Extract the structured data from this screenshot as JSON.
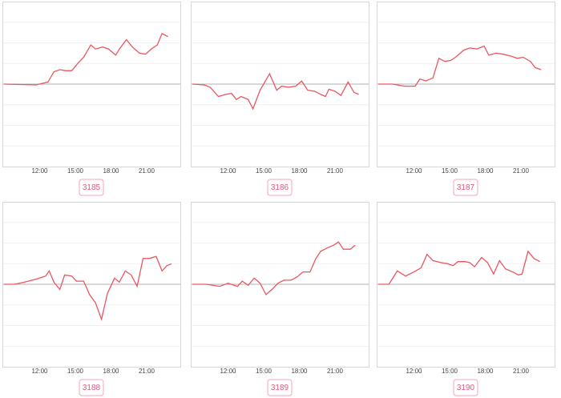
{
  "chart_data": [
    {
      "type": "line",
      "label": "3185",
      "color": "#ea5660",
      "x": [
        9.0,
        11.7,
        12.7,
        13.2,
        13.7,
        14.2,
        14.7,
        15.2,
        15.7,
        16.3,
        16.7,
        17.3,
        17.8,
        18.4,
        18.7,
        19.3,
        19.8,
        20.4,
        20.9,
        21.4,
        21.9,
        22.3,
        22.8
      ],
      "values": [
        0,
        -0.04,
        0.1,
        0.6,
        0.7,
        0.65,
        0.65,
        1.0,
        1.3,
        1.9,
        1.7,
        1.8,
        1.7,
        1.4,
        1.7,
        2.15,
        1.8,
        1.5,
        1.45,
        1.7,
        1.9,
        2.45,
        2.3
      ],
      "xlim": [
        9,
        23.7
      ],
      "ylim": [
        -4,
        4
      ],
      "yticks": [
        -3,
        -2,
        -1,
        0,
        1,
        2,
        3
      ],
      "xticks": [
        {
          "value": 12,
          "label": "12:00"
        },
        {
          "value": 15,
          "label": "15:00"
        },
        {
          "value": 18,
          "label": "18:00"
        },
        {
          "value": 21,
          "label": "21:00"
        }
      ],
      "grid": true
    },
    {
      "type": "line",
      "label": "3186",
      "color": "#ea5660",
      "x": [
        9.0,
        10.0,
        10.5,
        11.2,
        11.8,
        12.3,
        12.7,
        13.1,
        13.7,
        14.1,
        14.7,
        15.5,
        16.1,
        16.5,
        17.1,
        17.7,
        18.2,
        18.7,
        19.3,
        19.8,
        20.2,
        20.5,
        21.0,
        21.5,
        22.1,
        22.6,
        23.0
      ],
      "values": [
        0,
        -0.04,
        -0.15,
        -0.6,
        -0.5,
        -0.45,
        -0.75,
        -0.6,
        -0.75,
        -1.2,
        -0.3,
        0.5,
        -0.3,
        -0.1,
        -0.15,
        -0.1,
        0.15,
        -0.3,
        -0.35,
        -0.5,
        -0.6,
        -0.25,
        -0.35,
        -0.55,
        0.1,
        -0.4,
        -0.5
      ],
      "xlim": [
        9,
        23.7
      ],
      "ylim": [
        -4,
        4
      ],
      "yticks": [
        -3,
        -2,
        -1,
        0,
        1,
        2,
        3
      ],
      "xticks": [
        {
          "value": 12,
          "label": "12:00"
        },
        {
          "value": 15,
          "label": "15:00"
        },
        {
          "value": 18,
          "label": "18:00"
        },
        {
          "value": 21,
          "label": "21:00"
        }
      ],
      "grid": true
    },
    {
      "type": "line",
      "label": "3187",
      "color": "#ea5660",
      "x": [
        9.0,
        10.2,
        11.2,
        12.1,
        12.5,
        13.0,
        13.6,
        14.1,
        14.6,
        15.1,
        15.5,
        16.2,
        16.7,
        17.3,
        17.9,
        18.3,
        18.9,
        19.5,
        20.2,
        20.7,
        21.2,
        21.8,
        22.2,
        22.7
      ],
      "values": [
        0,
        0,
        -0.1,
        -0.1,
        0.25,
        0.15,
        0.3,
        1.25,
        1.1,
        1.15,
        1.3,
        1.65,
        1.75,
        1.7,
        1.85,
        1.4,
        1.5,
        1.45,
        1.35,
        1.25,
        1.3,
        1.1,
        0.8,
        0.7
      ],
      "xlim": [
        9,
        23.7
      ],
      "ylim": [
        -4,
        4
      ],
      "yticks": [
        -3,
        -2,
        -1,
        0,
        1,
        2,
        3
      ],
      "xticks": [
        {
          "value": 12,
          "label": "12:00"
        },
        {
          "value": 15,
          "label": "15:00"
        },
        {
          "value": 18,
          "label": "18:00"
        },
        {
          "value": 21,
          "label": "21:00"
        }
      ],
      "grid": true
    },
    {
      "type": "line",
      "label": "3188",
      "color": "#ea5660",
      "x": [
        9.0,
        9.9,
        10.7,
        11.7,
        12.5,
        12.8,
        13.2,
        13.7,
        14.1,
        14.7,
        15.1,
        15.7,
        16.2,
        16.7,
        17.2,
        17.7,
        18.3,
        18.7,
        19.2,
        19.7,
        20.2,
        20.7,
        21.2,
        21.8,
        22.3,
        22.7,
        23.1
      ],
      "values": [
        0,
        0,
        0.1,
        0.25,
        0.4,
        0.65,
        0.1,
        -0.25,
        0.45,
        0.4,
        0.15,
        0.15,
        -0.5,
        -0.9,
        -1.7,
        -0.45,
        0.3,
        0.1,
        0.65,
        0.45,
        -0.1,
        1.25,
        1.25,
        1.35,
        0.65,
        0.9,
        1.0
      ],
      "xlim": [
        9,
        23.7
      ],
      "ylim": [
        -4,
        4
      ],
      "yticks": [
        -3,
        -2,
        -1,
        0,
        1,
        2,
        3
      ],
      "xticks": [
        {
          "value": 12,
          "label": "12:00"
        },
        {
          "value": 15,
          "label": "15:00"
        },
        {
          "value": 18,
          "label": "18:00"
        },
        {
          "value": 21,
          "label": "21:00"
        }
      ],
      "grid": true
    },
    {
      "type": "line",
      "label": "3189",
      "color": "#ea5660",
      "x": [
        9.0,
        10.2,
        11.3,
        12.0,
        12.5,
        12.8,
        13.2,
        13.7,
        14.2,
        14.7,
        15.2,
        15.7,
        16.2,
        16.7,
        17.3,
        17.8,
        18.3,
        18.9,
        19.4,
        19.8,
        20.3,
        20.9,
        21.3,
        21.7,
        22.3,
        22.7
      ],
      "values": [
        0,
        0,
        -0.1,
        0.05,
        -0.05,
        -0.1,
        0.15,
        -0.05,
        0.3,
        0.05,
        -0.5,
        -0.25,
        0.05,
        0.2,
        0.2,
        0.35,
        0.6,
        0.6,
        1.25,
        1.6,
        1.75,
        1.9,
        2.05,
        1.7,
        1.7,
        1.9
      ],
      "xlim": [
        9,
        23.7
      ],
      "ylim": [
        -4,
        4
      ],
      "yticks": [
        -3,
        -2,
        -1,
        0,
        1,
        2,
        3
      ],
      "xticks": [
        {
          "value": 12,
          "label": "12:00"
        },
        {
          "value": 15,
          "label": "15:00"
        },
        {
          "value": 18,
          "label": "18:00"
        },
        {
          "value": 21,
          "label": "21:00"
        }
      ],
      "grid": true
    },
    {
      "type": "line",
      "label": "3190",
      "color": "#ea5660",
      "x": [
        9.0,
        9.9,
        10.6,
        11.3,
        12.0,
        12.6,
        13.1,
        13.6,
        14.3,
        14.8,
        15.3,
        15.7,
        16.3,
        16.7,
        17.1,
        17.7,
        18.2,
        18.7,
        19.2,
        19.7,
        20.3,
        20.8,
        21.1,
        21.6,
        22.1,
        22.6
      ],
      "values": [
        0,
        0,
        0.65,
        0.4,
        0.6,
        0.8,
        1.45,
        1.15,
        1.05,
        1.0,
        0.9,
        1.1,
        1.1,
        1.05,
        0.85,
        1.3,
        1.05,
        0.5,
        1.15,
        0.75,
        0.6,
        0.45,
        0.5,
        1.6,
        1.25,
        1.1
      ],
      "xlim": [
        9,
        23.7
      ],
      "ylim": [
        -4,
        4
      ],
      "yticks": [
        -3,
        -2,
        -1,
        0,
        1,
        2,
        3
      ],
      "xticks": [
        {
          "value": 12,
          "label": "12:00"
        },
        {
          "value": 15,
          "label": "15:00"
        },
        {
          "value": 18,
          "label": "18:00"
        },
        {
          "value": 21,
          "label": "21:00"
        }
      ],
      "grid": true
    }
  ]
}
